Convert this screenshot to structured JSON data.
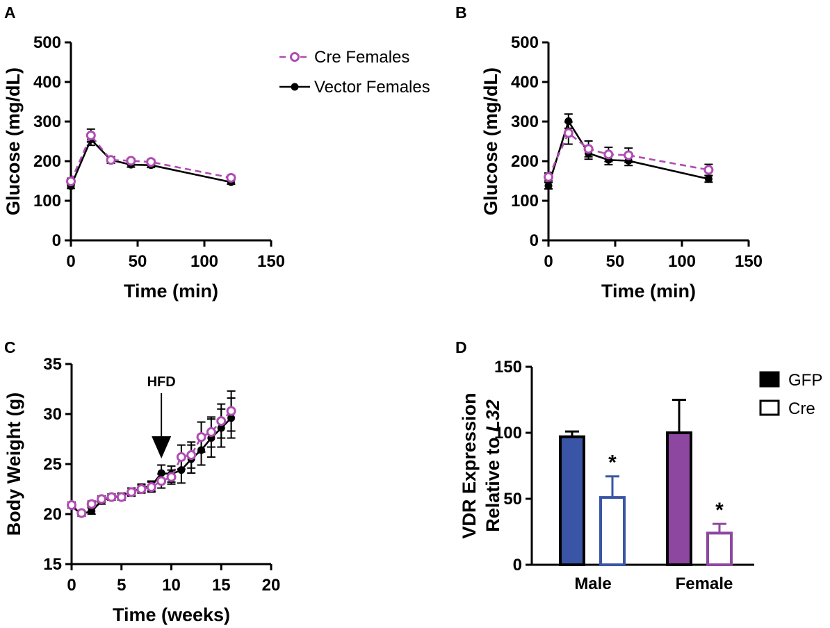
{
  "chart_data": [
    {
      "panel": "A",
      "type": "line",
      "xlabel": "Time (min)",
      "ylabel": "Glucose (mg/dL)",
      "xlim": [
        0,
        150
      ],
      "ylim": [
        0,
        500
      ],
      "xticks": [
        0,
        50,
        100,
        150
      ],
      "yticks": [
        0,
        100,
        200,
        300,
        400,
        500
      ],
      "legend_position": "top-right",
      "series": [
        {
          "name": "Vector Females",
          "color": "#000000",
          "marker": "filled-circle",
          "line": "solid",
          "x": [
            0,
            15,
            30,
            45,
            60,
            120
          ],
          "y": [
            137,
            255,
            203,
            191,
            190,
            147
          ],
          "err": [
            6,
            15,
            8,
            6,
            6,
            5
          ]
        },
        {
          "name": "Cre Females",
          "color": "#b04cb3",
          "marker": "open-circle",
          "line": "dashed",
          "x": [
            0,
            15,
            30,
            45,
            60,
            120
          ],
          "y": [
            149,
            265,
            203,
            201,
            198,
            158
          ],
          "err": [
            8,
            16,
            8,
            6,
            6,
            6
          ]
        }
      ]
    },
    {
      "panel": "B",
      "type": "line",
      "xlabel": "Time (min)",
      "ylabel": "Glucose (mg/dL)",
      "xlim": [
        0,
        150
      ],
      "ylim": [
        0,
        500
      ],
      "xticks": [
        0,
        50,
        100,
        150
      ],
      "yticks": [
        0,
        100,
        200,
        300,
        400,
        500
      ],
      "series": [
        {
          "name": "Vector Females",
          "color": "#000000",
          "marker": "filled-circle",
          "line": "solid",
          "x": [
            0,
            15,
            30,
            45,
            60,
            120
          ],
          "y": [
            138,
            301,
            220,
            203,
            201,
            155
          ],
          "err": [
            8,
            18,
            15,
            12,
            12,
            8
          ]
        },
        {
          "name": "Cre Females",
          "color": "#b04cb3",
          "marker": "open-circle",
          "line": "dashed",
          "x": [
            0,
            15,
            30,
            45,
            60,
            120
          ],
          "y": [
            160,
            271,
            231,
            217,
            215,
            178
          ],
          "err": [
            10,
            28,
            20,
            18,
            18,
            14
          ]
        }
      ]
    },
    {
      "panel": "C",
      "type": "line",
      "xlabel": "Time (weeks)",
      "ylabel": "Body Weight (g)",
      "xlim": [
        0,
        20
      ],
      "ylim": [
        15,
        35
      ],
      "xticks": [
        0,
        5,
        10,
        15,
        20
      ],
      "yticks": [
        15,
        20,
        25,
        30,
        35
      ],
      "annotation": {
        "text": "HFD",
        "x": 9
      },
      "series": [
        {
          "name": "Vector Females",
          "color": "#000000",
          "marker": "filled-circle",
          "line": "solid",
          "x": [
            0,
            1,
            2,
            3,
            4,
            5,
            6,
            7,
            8,
            9,
            10,
            11,
            12,
            13,
            14,
            15,
            16
          ],
          "y": [
            20.8,
            20.0,
            20.3,
            21.3,
            21.7,
            21.8,
            22.2,
            22.6,
            22.8,
            24.1,
            24.0,
            24.4,
            25.5,
            26.4,
            27.6,
            28.6,
            29.6
          ],
          "err": [
            0.2,
            0.2,
            0.3,
            0.3,
            0.3,
            0.3,
            0.4,
            0.4,
            0.5,
            0.8,
            0.8,
            1.3,
            1.4,
            1.5,
            1.9,
            1.9,
            2.0
          ]
        },
        {
          "name": "Cre Females",
          "color": "#b04cb3",
          "marker": "open-circle",
          "line": "dashed",
          "x": [
            0,
            1,
            2,
            3,
            4,
            5,
            6,
            7,
            8,
            9,
            10,
            11,
            12,
            13,
            14,
            15,
            16
          ],
          "y": [
            20.9,
            20.1,
            21.0,
            21.5,
            21.7,
            21.7,
            22.2,
            22.5,
            22.7,
            23.3,
            23.7,
            25.7,
            25.9,
            27.7,
            28.2,
            29.3,
            30.3
          ],
          "err": [
            0.3,
            0.2,
            0.3,
            0.3,
            0.3,
            0.3,
            0.4,
            0.4,
            0.5,
            0.7,
            0.7,
            1.2,
            1.3,
            1.5,
            1.5,
            1.7,
            2.0
          ]
        }
      ]
    },
    {
      "panel": "D",
      "type": "bar",
      "ylabel_lines": [
        "VDR Expression",
        "Relative to "
      ],
      "ylabel_italic": "L32",
      "ylim": [
        0,
        150
      ],
      "yticks": [
        0,
        50,
        100,
        150
      ],
      "categories": [
        "Male",
        "Female"
      ],
      "legend": [
        {
          "label": "GFP",
          "fill": "#000000"
        },
        {
          "label": "Cre",
          "fill": "#ffffff"
        }
      ],
      "bars": [
        {
          "category": "Male",
          "group": "GFP",
          "value": 97,
          "err": 4,
          "fill": "#3a55a6",
          "stroke": "#000000",
          "sig": ""
        },
        {
          "category": "Male",
          "group": "Cre",
          "value": 51,
          "err": 16,
          "fill": "#ffffff",
          "stroke": "#3a55a6",
          "sig": "*"
        },
        {
          "category": "Female",
          "group": "GFP",
          "value": 100,
          "err": 25,
          "fill": "#8e47a0",
          "stroke": "#000000",
          "sig": ""
        },
        {
          "category": "Female",
          "group": "Cre",
          "value": 24,
          "err": 7,
          "fill": "#ffffff",
          "stroke": "#8e47a0",
          "sig": "*"
        }
      ]
    }
  ]
}
